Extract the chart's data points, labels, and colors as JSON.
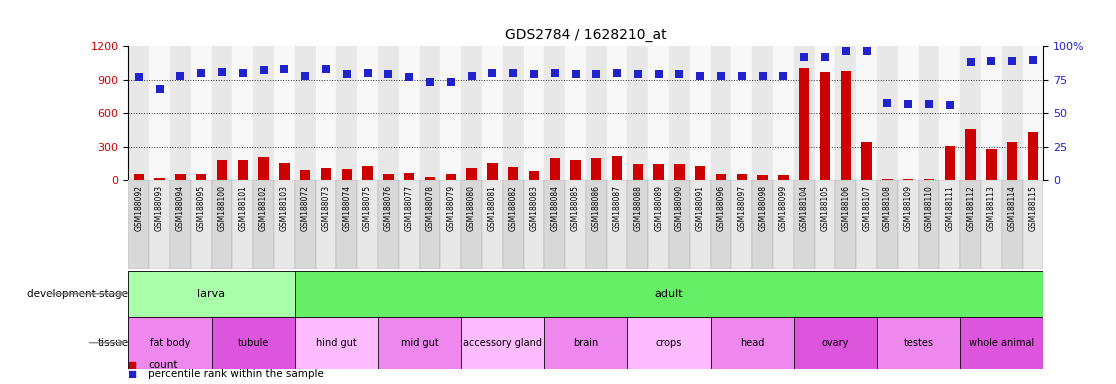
{
  "title": "GDS2784 / 1628210_at",
  "samples": [
    "GSM188092",
    "GSM188093",
    "GSM188094",
    "GSM188095",
    "GSM188100",
    "GSM188101",
    "GSM188102",
    "GSM188103",
    "GSM188072",
    "GSM188073",
    "GSM188074",
    "GSM188075",
    "GSM188076",
    "GSM188077",
    "GSM188078",
    "GSM188079",
    "GSM188080",
    "GSM188081",
    "GSM188082",
    "GSM188083",
    "GSM188084",
    "GSM188085",
    "GSM188086",
    "GSM188087",
    "GSM188088",
    "GSM188089",
    "GSM188090",
    "GSM188091",
    "GSM188096",
    "GSM188097",
    "GSM188098",
    "GSM188099",
    "GSM188104",
    "GSM188105",
    "GSM188106",
    "GSM188107",
    "GSM188108",
    "GSM188109",
    "GSM188110",
    "GSM188111",
    "GSM188112",
    "GSM188113",
    "GSM188114",
    "GSM188115"
  ],
  "count_values": [
    55,
    25,
    55,
    55,
    185,
    185,
    210,
    160,
    95,
    115,
    100,
    130,
    55,
    65,
    30,
    55,
    110,
    160,
    120,
    85,
    200,
    185,
    200,
    215,
    150,
    145,
    145,
    125,
    55,
    55,
    45,
    50,
    1000,
    970,
    980,
    340,
    10,
    10,
    10,
    310,
    460,
    280,
    340,
    430
  ],
  "percentile_values": [
    77,
    68,
    78,
    80,
    81,
    80,
    82,
    83,
    78,
    83,
    79,
    80,
    79,
    77,
    73,
    73,
    78,
    80,
    80,
    79,
    80,
    79,
    79,
    80,
    79,
    79,
    79,
    78,
    78,
    78,
    78,
    78,
    92,
    92,
    96,
    96,
    58,
    57,
    57,
    56,
    88,
    89,
    89,
    90
  ],
  "ylim_left": [
    0,
    1200
  ],
  "ylim_right": [
    0,
    100
  ],
  "yticks_left": [
    0,
    300,
    600,
    900,
    1200
  ],
  "yticks_right": [
    0,
    25,
    50,
    75,
    100
  ],
  "bar_color": "#CC0000",
  "dot_color": "#2222CC",
  "development_stages": [
    {
      "label": "larva",
      "start": 0,
      "end": 8,
      "color": "#AAFFAA"
    },
    {
      "label": "adult",
      "start": 8,
      "end": 44,
      "color": "#66EE66"
    }
  ],
  "tissues": [
    {
      "label": "fat body",
      "start": 0,
      "end": 4,
      "color": "#EE88EE"
    },
    {
      "label": "tubule",
      "start": 4,
      "end": 8,
      "color": "#DD55DD"
    },
    {
      "label": "hind gut",
      "start": 8,
      "end": 12,
      "color": "#FFBBFF"
    },
    {
      "label": "mid gut",
      "start": 12,
      "end": 16,
      "color": "#EE88EE"
    },
    {
      "label": "accessory gland",
      "start": 16,
      "end": 20,
      "color": "#FFBBFF"
    },
    {
      "label": "brain",
      "start": 20,
      "end": 24,
      "color": "#EE88EE"
    },
    {
      "label": "crops",
      "start": 24,
      "end": 28,
      "color": "#FFBBFF"
    },
    {
      "label": "head",
      "start": 28,
      "end": 32,
      "color": "#EE88EE"
    },
    {
      "label": "ovary",
      "start": 32,
      "end": 36,
      "color": "#DD55DD"
    },
    {
      "label": "testes",
      "start": 36,
      "end": 40,
      "color": "#EE88EE"
    },
    {
      "label": "whole animal",
      "start": 40,
      "end": 44,
      "color": "#DD55DD"
    }
  ]
}
